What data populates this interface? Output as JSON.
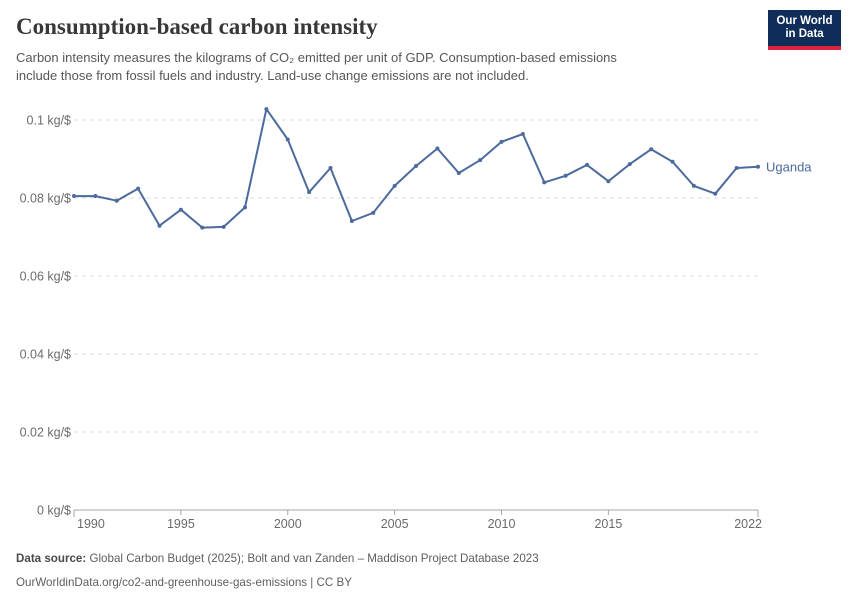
{
  "header": {
    "title": "Consumption-based carbon intensity",
    "subtitle_line1": "Carbon intensity measures the kilograms of CO₂ emitted per unit of GDP. Consumption-based emissions",
    "subtitle_line2": "include those from fossil fuels and industry. Land-use change emissions are not included.",
    "logo": {
      "line1": "Our World",
      "line2": "in Data",
      "bg_color": "#102d59",
      "bar_color": "#e0233c",
      "text_color": "#ffffff"
    }
  },
  "chart_data": {
    "type": "line",
    "title": "Consumption-based carbon intensity",
    "unit": "kg/$",
    "xlim": [
      1990,
      2022
    ],
    "ylim": [
      0,
      0.105
    ],
    "grid": "horizontal-dashed",
    "legend_position": "end-of-line-label",
    "x": [
      1990,
      1991,
      1992,
      1993,
      1994,
      1995,
      1996,
      1997,
      1998,
      1999,
      2000,
      2001,
      2002,
      2003,
      2004,
      2005,
      2006,
      2007,
      2008,
      2009,
      2010,
      2011,
      2012,
      2013,
      2014,
      2015,
      2016,
      2017,
      2018,
      2019,
      2020,
      2021,
      2022
    ],
    "series": [
      {
        "name": "Uganda",
        "color": "#4C6A9C",
        "values": [
          0.0805,
          0.0805,
          0.0793,
          0.0824,
          0.0729,
          0.077,
          0.0724,
          0.0726,
          0.0776,
          0.1028,
          0.095,
          0.0815,
          0.0877,
          0.0741,
          0.0762,
          0.0831,
          0.0882,
          0.0927,
          0.0864,
          0.0897,
          0.0944,
          0.0964,
          0.084,
          0.0857,
          0.0885,
          0.0843,
          0.0887,
          0.0925,
          0.0893,
          0.0831,
          0.0811,
          0.0877,
          0.088
        ]
      }
    ],
    "x_ticks": [
      {
        "value": 1990,
        "label": "1990",
        "align": "start"
      },
      {
        "value": 1995,
        "label": "1995",
        "align": "middle"
      },
      {
        "value": 2000,
        "label": "2000",
        "align": "middle"
      },
      {
        "value": 2005,
        "label": "2005",
        "align": "middle"
      },
      {
        "value": 2010,
        "label": "2010",
        "align": "middle"
      },
      {
        "value": 2015,
        "label": "2015",
        "align": "middle"
      },
      {
        "value": 2022,
        "label": "2022",
        "align": "end"
      }
    ],
    "y_ticks": [
      {
        "value": 0,
        "label": "0 kg/$"
      },
      {
        "value": 0.02,
        "label": "0.02 kg/$"
      },
      {
        "value": 0.04,
        "label": "0.04 kg/$"
      },
      {
        "value": 0.06,
        "label": "0.06 kg/$"
      },
      {
        "value": 0.08,
        "label": "0.08 kg/$"
      },
      {
        "value": 0.1,
        "label": "0.1 kg/$"
      }
    ],
    "colors": {
      "gridline": "#dcdcdc",
      "axis": "#a5a5a5",
      "tick_text": "#6b6b6b"
    }
  },
  "footer": {
    "datasource_label": "Data source:",
    "datasource_text": " Global Carbon Budget (2025); Bolt and van Zanden – Maddison Project Database 2023",
    "url_line": "OurWorldinData.org/co2-and-greenhouse-gas-emissions | CC BY"
  }
}
